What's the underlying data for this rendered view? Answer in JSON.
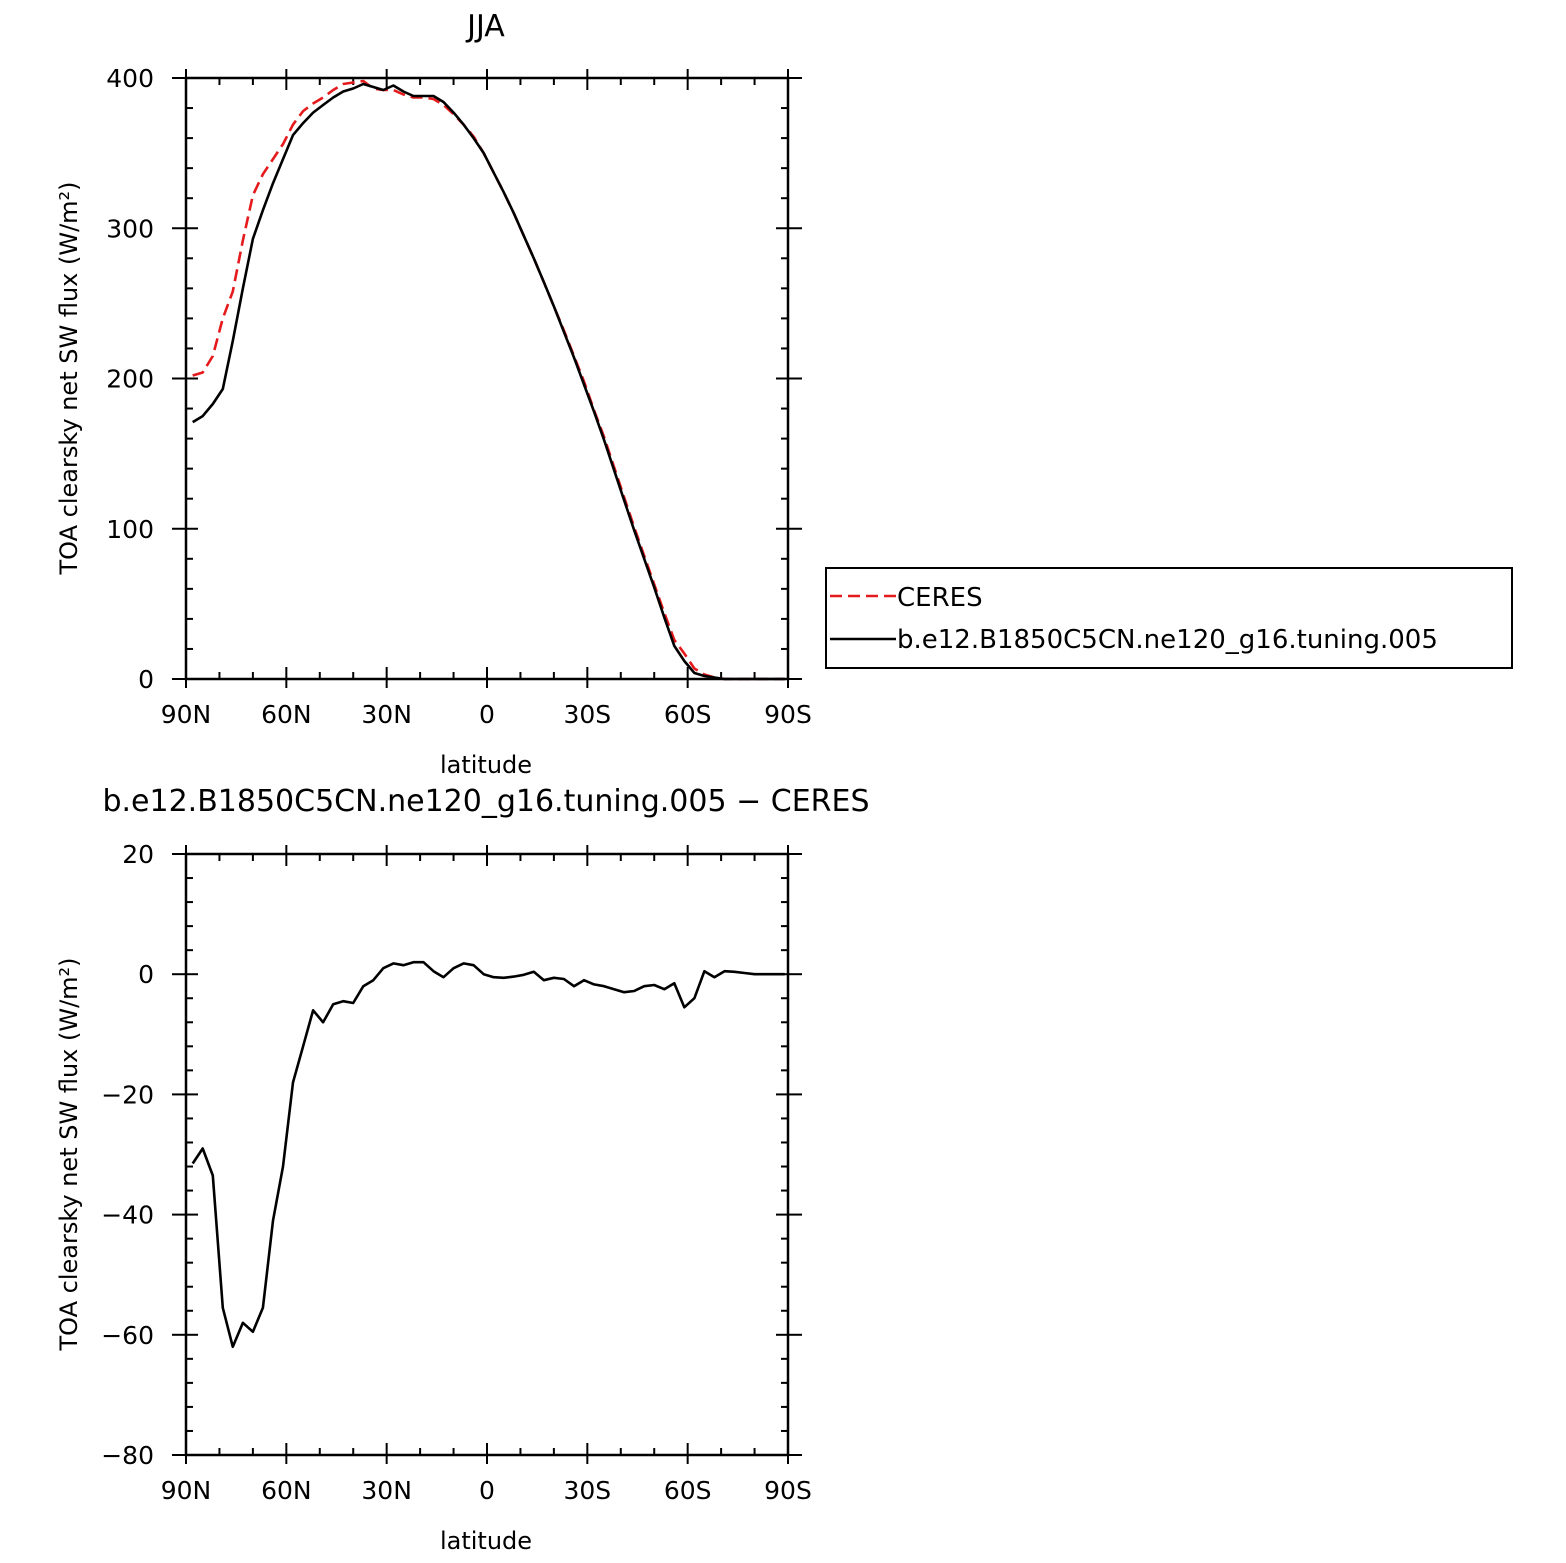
{
  "chart_data": [
    {
      "type": "line",
      "title": "JJA",
      "xlabel": "latitude",
      "ylabel": "TOA clearsky net SW flux (W/m²)",
      "xlim": [
        90,
        -90
      ],
      "ylim": [
        0,
        400
      ],
      "x_ticks": [
        90,
        60,
        30,
        0,
        -30,
        -60,
        -90
      ],
      "x_tick_labels": [
        "90N",
        "60N",
        "30N",
        "0",
        "30S",
        "60S",
        "90S"
      ],
      "y_ticks": [
        0,
        100,
        200,
        300,
        400
      ],
      "y_tick_labels": [
        "0",
        "100",
        "200",
        "300",
        "400"
      ],
      "legend_position": "right",
      "series": [
        {
          "name": "CERES",
          "color": "#e41a1c",
          "style": "dashed",
          "x": [
            88,
            85,
            82,
            79,
            76,
            73,
            70,
            67,
            64,
            61,
            58,
            55,
            52,
            49,
            46,
            43,
            40,
            37,
            34,
            31,
            28,
            25,
            22,
            19,
            16,
            13,
            10,
            7,
            4,
            1,
            -2,
            -5,
            -8,
            -11,
            -14,
            -17,
            -20,
            -23,
            -26,
            -29,
            -32,
            -35,
            -38,
            -41,
            -44,
            -47,
            -50,
            -53,
            -56,
            -59,
            -62,
            -65,
            -68,
            -71,
            -74,
            -77,
            -80,
            -83,
            -86,
            -89
          ],
          "values": [
            202,
            204,
            215,
            240,
            258,
            292,
            322,
            336,
            346,
            356,
            369,
            378,
            383,
            387,
            392,
            396,
            397,
            398,
            393,
            392,
            392,
            389,
            387,
            387,
            386,
            382,
            376,
            369,
            361,
            350,
            337,
            324,
            310,
            295,
            280,
            264,
            248,
            232,
            215,
            198,
            179,
            161,
            141,
            121,
            101,
            82,
            63,
            44,
            26,
            17,
            7,
            3,
            1,
            0,
            0,
            0,
            0,
            0,
            0,
            0
          ]
        },
        {
          "name": "b.e12.B1850C5CN.ne120_g16.tuning.005",
          "color": "#000000",
          "style": "solid",
          "x": [
            88,
            85,
            82,
            79,
            76,
            73,
            70,
            67,
            64,
            61,
            58,
            55,
            52,
            49,
            46,
            43,
            40,
            37,
            34,
            31,
            28,
            25,
            22,
            19,
            16,
            13,
            10,
            7,
            4,
            1,
            -2,
            -5,
            -8,
            -11,
            -14,
            -17,
            -20,
            -23,
            -26,
            -29,
            -32,
            -35,
            -38,
            -41,
            -44,
            -47,
            -50,
            -53,
            -56,
            -59,
            -62,
            -65,
            -68,
            -71,
            -74,
            -77,
            -80,
            -83,
            -86,
            -89
          ],
          "values": [
            171,
            175,
            183,
            193,
            225,
            260,
            293,
            312,
            330,
            346,
            362,
            370,
            377,
            382,
            387,
            391,
            393,
            396,
            394,
            392,
            395,
            391,
            388,
            388,
            388,
            384,
            377,
            369,
            360,
            350,
            337,
            324,
            310,
            295,
            280,
            264,
            248,
            231,
            214,
            196,
            178,
            159,
            139,
            119,
            99,
            80,
            61,
            41,
            22,
            12,
            4,
            2,
            1,
            0,
            0,
            0,
            0,
            0,
            0,
            0
          ]
        }
      ]
    },
    {
      "type": "line",
      "title": "b.e12.B1850C5CN.ne120_g16.tuning.005 − CERES",
      "xlabel": "latitude",
      "ylabel": "TOA clearsky net SW flux (W/m²)",
      "xlim": [
        90,
        -90
      ],
      "ylim": [
        -80,
        20
      ],
      "x_ticks": [
        90,
        60,
        30,
        0,
        -30,
        -60,
        -90
      ],
      "x_tick_labels": [
        "90N",
        "60N",
        "30N",
        "0",
        "30S",
        "60S",
        "90S"
      ],
      "y_ticks": [
        -80,
        -60,
        -40,
        -20,
        0,
        20
      ],
      "y_tick_labels": [
        "−80",
        "−60",
        "−40",
        "−20",
        "0",
        "20"
      ],
      "series": [
        {
          "color": "#000000",
          "style": "solid",
          "x": [
            88,
            85,
            82,
            79,
            76,
            73,
            70,
            67,
            64,
            61,
            58,
            55,
            52,
            49,
            46,
            43,
            40,
            37,
            34,
            31,
            28,
            25,
            22,
            19,
            16,
            13,
            10,
            7,
            4,
            1,
            -2,
            -5,
            -8,
            -11,
            -14,
            -17,
            -20,
            -23,
            -26,
            -29,
            -32,
            -35,
            -38,
            -41,
            -44,
            -47,
            -50,
            -53,
            -56,
            -59,
            -62,
            -65,
            -68,
            -71,
            -74,
            -77,
            -80,
            -83,
            -86,
            -89
          ],
          "values": [
            -31.5,
            -29,
            -33.5,
            -55.5,
            -62,
            -58,
            -59.5,
            -55.5,
            -41,
            -32,
            -18,
            -12,
            -6,
            -8,
            -5,
            -4.5,
            -4.8,
            -2,
            -1,
            1,
            1.8,
            1.5,
            2,
            2,
            0.5,
            -0.5,
            1,
            1.8,
            1.5,
            0,
            -0.5,
            -0.6,
            -0.4,
            -0.1,
            0.4,
            -1,
            -0.6,
            -0.8,
            -2,
            -1,
            -1.7,
            -2,
            -2.5,
            -3,
            -2.8,
            -2,
            -1.8,
            -2.5,
            -1.5,
            -5.5,
            -4,
            0.5,
            -0.5,
            0.5,
            0.4,
            0.2,
            0,
            0,
            0,
            0
          ]
        }
      ]
    }
  ]
}
